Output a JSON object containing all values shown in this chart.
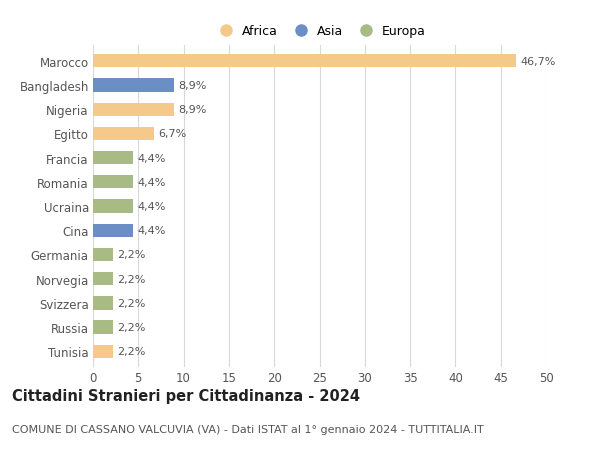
{
  "categories": [
    "Marocco",
    "Bangladesh",
    "Nigeria",
    "Egitto",
    "Francia",
    "Romania",
    "Ucraina",
    "Cina",
    "Germania",
    "Norvegia",
    "Svizzera",
    "Russia",
    "Tunisia"
  ],
  "values": [
    46.7,
    8.9,
    8.9,
    6.7,
    4.4,
    4.4,
    4.4,
    4.4,
    2.2,
    2.2,
    2.2,
    2.2,
    2.2
  ],
  "labels": [
    "46,7%",
    "8,9%",
    "8,9%",
    "6,7%",
    "4,4%",
    "4,4%",
    "4,4%",
    "4,4%",
    "2,2%",
    "2,2%",
    "2,2%",
    "2,2%",
    "2,2%"
  ],
  "bar_colors": [
    "#f5c98a",
    "#6b8ec4",
    "#f5c98a",
    "#f5c98a",
    "#a8bb84",
    "#a8bb84",
    "#a8bb84",
    "#6b8ec4",
    "#a8bb84",
    "#a8bb84",
    "#a8bb84",
    "#a8bb84",
    "#f5c98a"
  ],
  "legend_labels": [
    "Africa",
    "Asia",
    "Europa"
  ],
  "legend_colors": [
    "#f5c98a",
    "#6b8ec4",
    "#a8bb84"
  ],
  "title": "Cittadini Stranieri per Cittadinanza - 2024",
  "subtitle": "COMUNE DI CASSANO VALCUVIA (VA) - Dati ISTAT al 1° gennaio 2024 - TUTTITALIA.IT",
  "xlim": [
    0,
    50
  ],
  "xticks": [
    0,
    5,
    10,
    15,
    20,
    25,
    30,
    35,
    40,
    45,
    50
  ],
  "background_color": "#ffffff",
  "grid_color": "#d8d8d8",
  "bar_height": 0.55,
  "title_fontsize": 10.5,
  "subtitle_fontsize": 8,
  "tick_fontsize": 8.5,
  "label_fontsize": 8
}
